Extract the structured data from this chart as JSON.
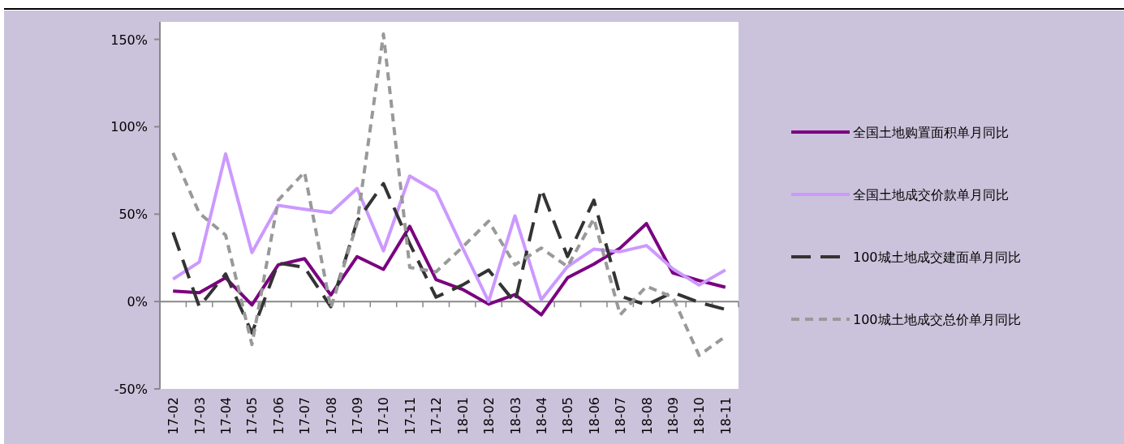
{
  "chart_data": {
    "type": "line",
    "categories": [
      "17-02",
      "17-03",
      "17-04",
      "17-05",
      "17-06",
      "17-07",
      "17-08",
      "17-09",
      "17-10",
      "17-11",
      "17-12",
      "18-01",
      "18-02",
      "18-03",
      "18-04",
      "18-05",
      "18-06",
      "18-07",
      "18-08",
      "18-09",
      "18-10",
      "18-11"
    ],
    "series": [
      {
        "name": "全国土地购置面积单月同比",
        "color": "#7b0080",
        "line_style": "solid",
        "values": [
          6,
          5,
          13.6,
          -2,
          21,
          24.5,
          3.7,
          25.7,
          18.4,
          43,
          12.5,
          7,
          -1.5,
          4,
          -7.6,
          13.6,
          21.4,
          30.6,
          44.6,
          16.4,
          12,
          8.2
        ]
      },
      {
        "name": "全国土地成交价款单月同比",
        "color": "#cc99ff",
        "line_style": "solid",
        "values": [
          12.8,
          22.6,
          84.5,
          28,
          55,
          52.8,
          50.8,
          64.7,
          29,
          71.8,
          63,
          31,
          0,
          49,
          1,
          20,
          30,
          28.5,
          32,
          18.7,
          9.4,
          18
        ]
      },
      {
        "name": "100城土地成交建面单月同比",
        "color": "#333333",
        "line_style": "dashed",
        "values": [
          39.6,
          -3,
          15.8,
          -18,
          22,
          19.5,
          -3,
          46,
          67.5,
          33,
          2.5,
          9.4,
          18,
          -0.5,
          64.4,
          25.7,
          58,
          3.2,
          -2,
          5.3,
          -0.5,
          -4.5
        ]
      },
      {
        "name": "100城土地成交总价单月同比",
        "color": "#999999",
        "line_style": "dotted",
        "values": [
          85,
          50.5,
          38,
          -24.6,
          58,
          74,
          -3.7,
          45,
          153,
          19.5,
          17,
          31,
          46,
          21,
          30.6,
          20,
          47.4,
          -7.6,
          8.7,
          2.5,
          -30.8,
          -20
        ]
      }
    ],
    "ylim": [
      -50,
      160
    ],
    "yticks": [
      {
        "value": -50,
        "label": "-50%"
      },
      {
        "value": 0,
        "label": "0%"
      },
      {
        "value": 50,
        "label": "50%"
      },
      {
        "value": 100,
        "label": "100%"
      },
      {
        "value": 150,
        "label": "150%"
      }
    ],
    "legend": "right",
    "marker": "none"
  }
}
